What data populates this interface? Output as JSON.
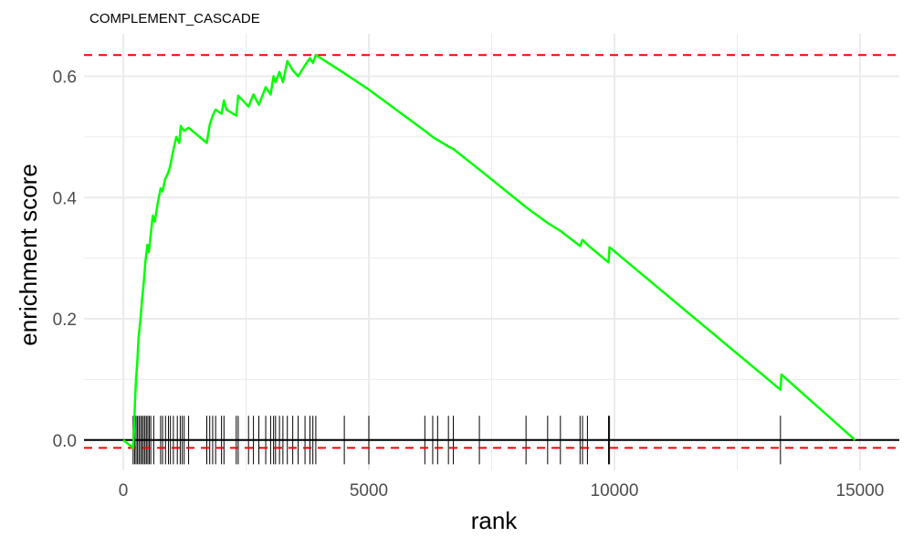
{
  "chart_data": {
    "type": "line",
    "title": "COMPLEMENT_CASCADE",
    "xlabel": "rank",
    "ylabel": "enrichment score",
    "xlim": [
      -800,
      15800
    ],
    "ylim": [
      -0.05,
      0.67
    ],
    "x_ticks": [
      0,
      5000,
      10000,
      15000
    ],
    "x_tick_labels": [
      "0",
      "5000",
      "10000",
      "15000"
    ],
    "y_ticks": [
      0.0,
      0.2,
      0.4,
      0.6
    ],
    "y_tick_labels": [
      "0.0",
      "0.2",
      "0.4",
      "0.6"
    ],
    "grid": true,
    "colors": {
      "curve": "#00ff00",
      "dashed": "#ff0000",
      "zero_line": "#000000",
      "grid": "#ebebeb"
    },
    "max_es": 0.635,
    "min_es": -0.013,
    "series": [
      {
        "x": [
          0,
          200,
          220,
          240,
          260,
          290,
          310,
          350,
          380,
          420,
          450,
          490,
          520,
          560,
          600,
          640,
          700,
          760,
          800,
          850,
          910,
          950,
          1010,
          1080,
          1140,
          1170,
          1200,
          1240,
          1330,
          1700,
          1760,
          1820,
          1880,
          2000,
          2050,
          2100,
          2300,
          2340,
          2550,
          2650,
          2760,
          2900,
          3000,
          3060,
          3100,
          3180,
          3250,
          3340,
          3450,
          3560,
          3700,
          3800,
          3860,
          3920,
          4500,
          5000,
          6140,
          6300,
          6400,
          6620,
          6720,
          7250,
          8200,
          8640,
          8900,
          9300,
          9350,
          9450,
          9880,
          9900,
          13380,
          13400,
          14900
        ],
        "y": [
          0.0,
          -0.013,
          0.02,
          0.065,
          0.1,
          0.135,
          0.168,
          0.2,
          0.23,
          0.262,
          0.293,
          0.322,
          0.31,
          0.34,
          0.37,
          0.36,
          0.39,
          0.415,
          0.41,
          0.43,
          0.44,
          0.45,
          0.475,
          0.5,
          0.49,
          0.518,
          0.514,
          0.51,
          0.515,
          0.49,
          0.52,
          0.535,
          0.545,
          0.538,
          0.56,
          0.545,
          0.535,
          0.568,
          0.55,
          0.57,
          0.553,
          0.582,
          0.57,
          0.6,
          0.59,
          0.607,
          0.59,
          0.625,
          0.61,
          0.6,
          0.618,
          0.63,
          0.622,
          0.635,
          0.605,
          0.578,
          0.51,
          0.5,
          0.495,
          0.484,
          0.48,
          0.446,
          0.384,
          0.358,
          0.345,
          0.32,
          0.33,
          0.322,
          0.293,
          0.318,
          0.083,
          0.108,
          0.0
        ]
      }
    ],
    "hits": [
      200,
      230,
      260,
      290,
      320,
      350,
      380,
      410,
      440,
      470,
      500,
      530,
      560,
      620,
      760,
      800,
      860,
      920,
      960,
      1020,
      1100,
      1160,
      1200,
      1240,
      1330,
      1700,
      1760,
      1820,
      1880,
      2000,
      2050,
      2300,
      2340,
      2550,
      2650,
      2760,
      2900,
      3000,
      3060,
      3100,
      3180,
      3250,
      3340,
      3450,
      3560,
      3700,
      3800,
      3860,
      3920,
      4500,
      5000,
      6140,
      6300,
      6400,
      6620,
      6720,
      7250,
      8200,
      8640,
      8900,
      9300,
      9350,
      9450,
      9880,
      9900,
      13380
    ]
  }
}
